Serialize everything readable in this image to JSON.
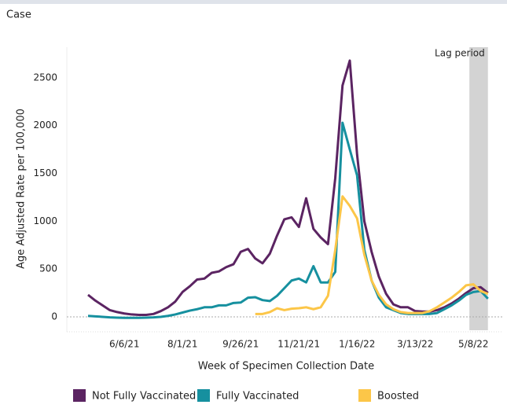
{
  "chart_data": {
    "type": "line",
    "title": "Case",
    "x_label": "Week of Specimen Collection Date",
    "y_label": "Age Adjusted Rate per 100,000",
    "x": [
      "5/2/21",
      "5/9/21",
      "5/16/21",
      "5/23/21",
      "5/30/21",
      "6/6/21",
      "6/13/21",
      "6/20/21",
      "6/27/21",
      "7/4/21",
      "7/11/21",
      "7/18/21",
      "7/25/21",
      "8/1/21",
      "8/8/21",
      "8/15/21",
      "8/22/21",
      "8/29/21",
      "9/5/21",
      "9/12/21",
      "9/19/21",
      "9/26/21",
      "10/3/21",
      "10/10/21",
      "10/17/21",
      "10/24/21",
      "10/31/21",
      "11/7/21",
      "11/14/21",
      "11/21/21",
      "11/28/21",
      "12/5/21",
      "12/12/21",
      "12/19/21",
      "12/26/21",
      "1/2/22",
      "1/9/22",
      "1/16/22",
      "1/23/22",
      "1/30/22",
      "2/6/22",
      "2/13/22",
      "2/20/22",
      "2/27/22",
      "3/6/22",
      "3/13/22",
      "3/20/22",
      "3/27/22",
      "4/3/22",
      "4/10/22",
      "4/17/22",
      "4/24/22",
      "5/1/22",
      "5/8/22",
      "5/15/22",
      "5/22/22"
    ],
    "xticks": [
      "6/6/21",
      "8/1/21",
      "9/26/21",
      "11/21/21",
      "1/16/22",
      "3/13/22",
      "5/8/22"
    ],
    "ylim": [
      -140,
      2820
    ],
    "yticks": [
      0,
      500,
      1000,
      1500,
      2000,
      2500
    ],
    "annotation": {
      "label": "Lag period",
      "start": "5/8/22",
      "end": "5/22/22",
      "color": "#d3d3d3"
    },
    "series": [
      {
        "name": "Not Fully Vaccinated",
        "color": "#5b2462",
        "values": [
          230,
          170,
          120,
          70,
          50,
          35,
          25,
          20,
          20,
          30,
          60,
          100,
          160,
          260,
          320,
          390,
          400,
          460,
          475,
          520,
          550,
          680,
          710,
          610,
          560,
          660,
          850,
          1020,
          1040,
          940,
          1240,
          920,
          830,
          760,
          1450,
          2420,
          2680,
          1700,
          1000,
          680,
          420,
          240,
          130,
          100,
          100,
          60,
          55,
          55,
          70,
          100,
          140,
          190,
          250,
          300,
          310,
          250
        ]
      },
      {
        "name": "Fully Vaccinated",
        "color": "#16909f",
        "values": [
          10,
          5,
          0,
          -5,
          -8,
          -10,
          -10,
          -10,
          -8,
          -5,
          0,
          10,
          25,
          45,
          65,
          80,
          100,
          100,
          120,
          120,
          145,
          150,
          200,
          205,
          175,
          165,
          220,
          300,
          380,
          400,
          360,
          530,
          360,
          360,
          470,
          2030,
          1750,
          1480,
          700,
          380,
          200,
          100,
          70,
          40,
          30,
          30,
          30,
          30,
          40,
          80,
          120,
          170,
          230,
          260,
          270,
          190
        ]
      },
      {
        "name": "Boosted",
        "color": "#fcc648",
        "values": [
          null,
          null,
          null,
          null,
          null,
          null,
          null,
          null,
          null,
          null,
          null,
          null,
          null,
          null,
          null,
          null,
          null,
          null,
          null,
          null,
          null,
          null,
          null,
          30,
          30,
          50,
          90,
          70,
          85,
          90,
          100,
          80,
          100,
          220,
          700,
          1260,
          1160,
          1030,
          650,
          380,
          230,
          130,
          80,
          50,
          40,
          40,
          40,
          60,
          100,
          150,
          200,
          260,
          330,
          340,
          270,
          240
        ]
      }
    ]
  }
}
